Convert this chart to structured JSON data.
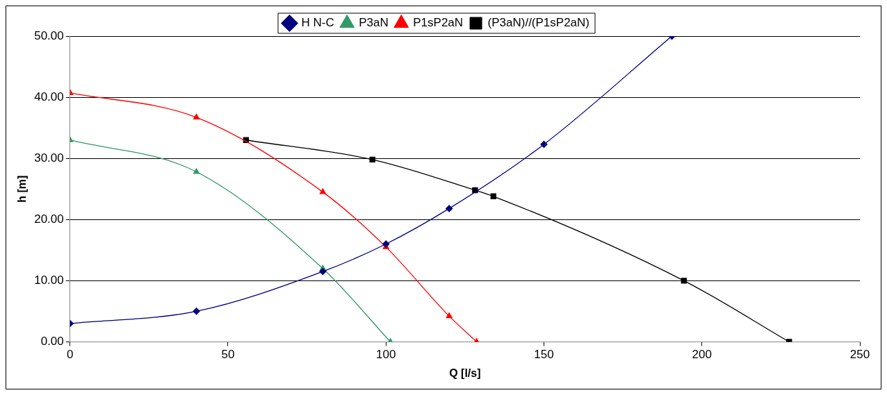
{
  "chart_data": {
    "type": "line",
    "xlabel": "Q [l/s]",
    "ylabel": "h [m]",
    "xlim": [
      0,
      250
    ],
    "xticks": [
      0,
      50,
      100,
      150,
      200,
      250
    ],
    "ylim": [
      0,
      50
    ],
    "yticks": [
      {
        "value": 0,
        "label": "0.00"
      },
      {
        "value": 10,
        "label": "10.00"
      },
      {
        "value": 20,
        "label": "20.00"
      },
      {
        "value": 30,
        "label": "30.00"
      },
      {
        "value": 40,
        "label": "40.00"
      },
      {
        "value": 50,
        "label": "50.00"
      }
    ],
    "grid": "y",
    "legend": "top",
    "line_style": "solid",
    "series": [
      {
        "name": "H N-C",
        "color": "#000080",
        "marker": "diamond",
        "x": [
          0,
          40,
          80,
          100,
          120,
          150,
          190.5
        ],
        "values": [
          3,
          5,
          11.5,
          16,
          21.8,
          32.3,
          50
        ]
      },
      {
        "name": "P3aN",
        "color": "#339966",
        "marker": "triangle",
        "x": [
          0,
          40,
          80,
          101.4
        ],
        "values": [
          33,
          27.8,
          12,
          0
        ]
      },
      {
        "name": "P1sP2aN",
        "color": "#ff0000",
        "marker": "triangle",
        "x": [
          0,
          40,
          80,
          100,
          120,
          128.7
        ],
        "values": [
          40.7,
          36.7,
          24.5,
          15.5,
          4.2,
          0
        ]
      },
      {
        "name": "(P3aN)//(P1sP2aN)",
        "color": "#000000",
        "marker": "square",
        "x": [
          55.7,
          95.7,
          128.2,
          134,
          194.3,
          227.6
        ],
        "values": [
          33,
          29.8,
          24.8,
          23.8,
          10,
          0
        ]
      }
    ]
  }
}
